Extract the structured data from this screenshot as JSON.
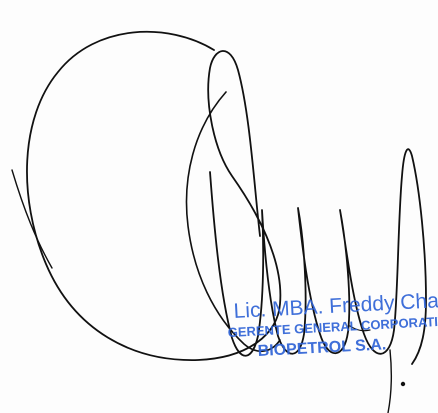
{
  "signature": {
    "ink_color": "#111111"
  },
  "stamp": {
    "color": "#2f63d6",
    "line1": "Lic. MBA. Freddy Chamacero Cors",
    "line2": "GERENTE GENERAL CORPORATIVO",
    "line3": "BIOPETROL S.A."
  }
}
